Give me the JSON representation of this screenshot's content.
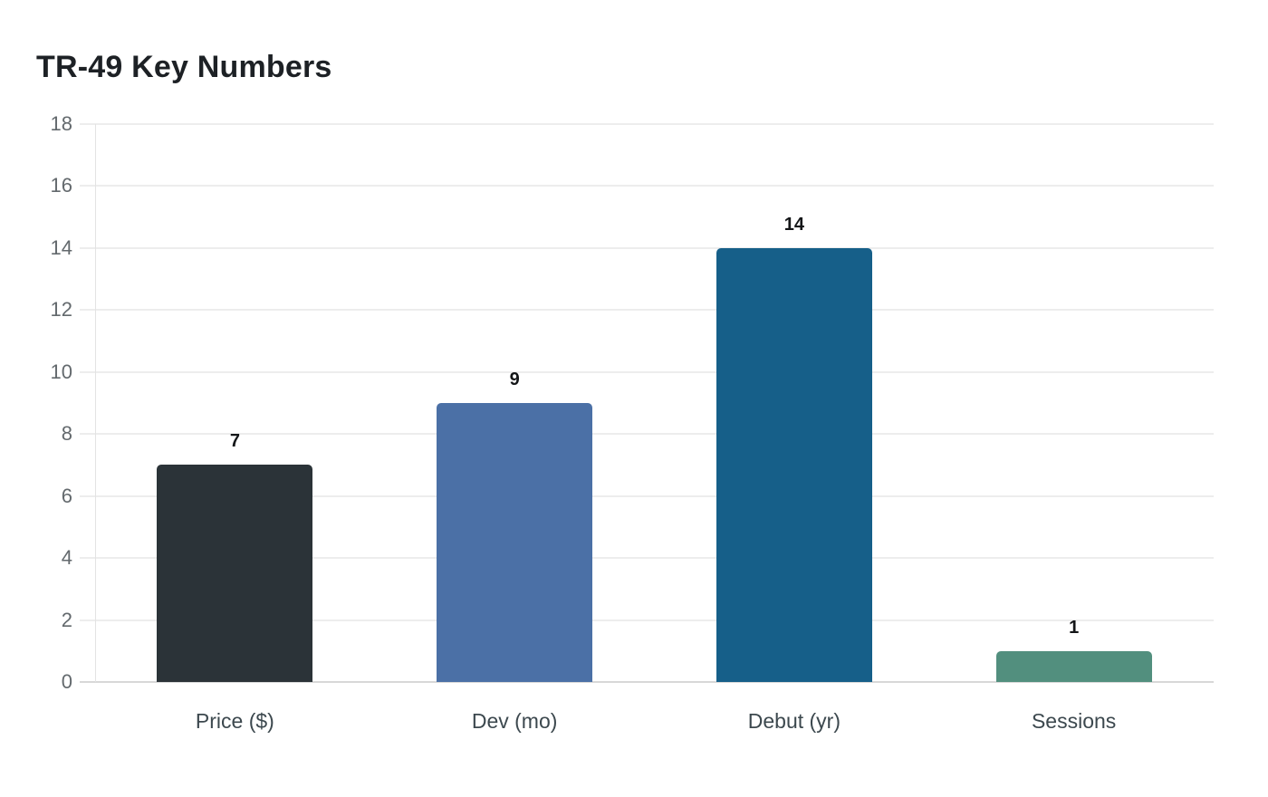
{
  "chart_data": {
    "type": "bar",
    "title": "TR-49 Key Numbers",
    "categories": [
      "Price ($)",
      "Dev (mo)",
      "Debut (yr)",
      "Sessions"
    ],
    "values": [
      7,
      9,
      14,
      1
    ],
    "data_labels": [
      "7",
      "9",
      "14",
      "1"
    ],
    "bar_colors": [
      "#2b3338",
      "#4b70a6",
      "#165f89",
      "#528f7e"
    ],
    "ylim": [
      0,
      18
    ],
    "yticks": [
      0,
      2,
      4,
      6,
      8,
      10,
      12,
      14,
      16,
      18
    ],
    "grid": "horizontal",
    "legend": "none",
    "xlabel": "",
    "ylabel": "",
    "background": "#ffffff",
    "colors": {
      "title_text": "#1d2125",
      "grid_line": "#ededed",
      "zero_line": "#d8d8d8",
      "axis_line": "#e3e3e3",
      "tick_text": "#63696d",
      "category_text": "#3c484e",
      "value_text": "#141618"
    }
  }
}
